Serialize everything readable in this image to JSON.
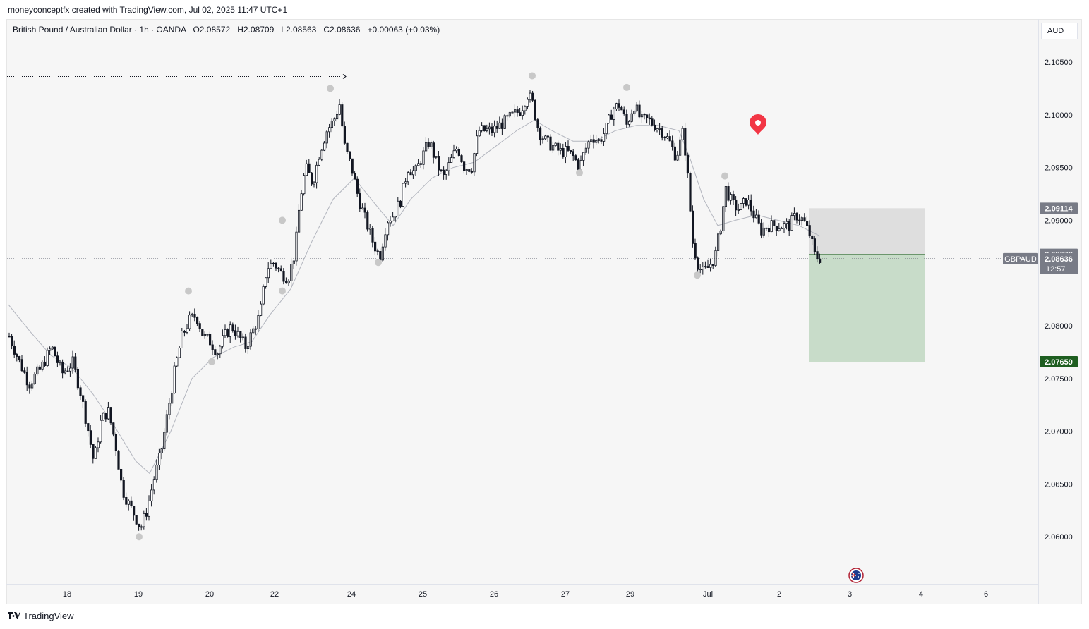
{
  "attribution": "moneyconceptfx created with TradingView.com, Jul 02, 2025 11:47 UTC+1",
  "legend": {
    "symbol": "British Pound / Australian Dollar · 1h · OANDA",
    "open": "O2.08572",
    "high": "H2.08709",
    "low": "L2.08563",
    "close": "C2.08636",
    "change": "+0.00063 (+0.03%)"
  },
  "currency": "AUD",
  "footer": {
    "brand": "TradingView",
    "logo_icon": "tradingview-logo-icon"
  },
  "colors": {
    "candle": "#131722",
    "ma": "#b2b5be",
    "stop_zone": "#d9d9d9",
    "target_zone": "#c8dcc9",
    "target_label": "#1e5e20",
    "price_label": "#787b86",
    "marker": "#f23645",
    "swing_dot": "#c8c8c8"
  },
  "chart_data": {
    "type": "candlestick",
    "symbol": "GBPAUD",
    "timeframe": "1h",
    "y_ticks": [
      "2.10500",
      "2.10000",
      "2.09500",
      "2.09000",
      "2.08000",
      "2.07500",
      "2.07000",
      "2.06500",
      "2.06000"
    ],
    "x_ticks": [
      "18",
      "19",
      "20",
      "22",
      "24",
      "25",
      "26",
      "27",
      "29",
      "Jul",
      "2",
      "3",
      "4",
      "6"
    ],
    "ylim": [
      2.0555,
      2.111
    ],
    "close_path": [
      [
        0,
        2.079
      ],
      [
        12,
        2.077
      ],
      [
        28,
        2.0745
      ],
      [
        45,
        2.076
      ],
      [
        60,
        2.078
      ],
      [
        75,
        2.0755
      ],
      [
        90,
        2.0765
      ],
      [
        100,
        2.074
      ],
      [
        112,
        2.07
      ],
      [
        120,
        2.067
      ],
      [
        130,
        2.071
      ],
      [
        140,
        2.072
      ],
      [
        150,
        2.069
      ],
      [
        160,
        2.0645
      ],
      [
        170,
        2.063
      ],
      [
        178,
        2.062
      ],
      [
        186,
        2.0608
      ],
      [
        195,
        2.0625
      ],
      [
        205,
        2.0655
      ],
      [
        215,
        2.068
      ],
      [
        225,
        2.072
      ],
      [
        235,
        2.076
      ],
      [
        245,
        2.079
      ],
      [
        255,
        2.0805
      ],
      [
        265,
        2.081
      ],
      [
        275,
        2.079
      ],
      [
        285,
        2.0785
      ],
      [
        295,
        2.0775
      ],
      [
        305,
        2.079
      ],
      [
        315,
        2.08
      ],
      [
        325,
        2.079
      ],
      [
        335,
        2.078
      ],
      [
        345,
        2.0795
      ],
      [
        355,
        2.081
      ],
      [
        365,
        2.0855
      ],
      [
        375,
        2.086
      ],
      [
        385,
        2.085
      ],
      [
        395,
        2.0845
      ],
      [
        405,
        2.087
      ],
      [
        412,
        2.092
      ],
      [
        420,
        2.095
      ],
      [
        430,
        2.0935
      ],
      [
        440,
        2.0965
      ],
      [
        450,
        2.0985
      ],
      [
        460,
        2.0995
      ],
      [
        468,
        2.101
      ],
      [
        475,
        2.097
      ],
      [
        485,
        2.095
      ],
      [
        495,
        2.092
      ],
      [
        505,
        2.09
      ],
      [
        515,
        2.088
      ],
      [
        525,
        2.0865
      ],
      [
        535,
        2.09
      ],
      [
        545,
        2.0905
      ],
      [
        555,
        2.092
      ],
      [
        565,
        2.095
      ],
      [
        575,
        2.0945
      ],
      [
        585,
        2.096
      ],
      [
        595,
        2.0975
      ],
      [
        605,
        2.0955
      ],
      [
        615,
        2.094
      ],
      [
        625,
        2.0955
      ],
      [
        635,
        2.097
      ],
      [
        645,
        2.095
      ],
      [
        655,
        2.095
      ],
      [
        665,
        2.0985
      ],
      [
        675,
        2.0985
      ],
      [
        685,
        2.0985
      ],
      [
        695,
        2.099
      ],
      [
        705,
        2.0995
      ],
      [
        715,
        2.1
      ],
      [
        725,
        2.1005
      ],
      [
        735,
        2.102
      ],
      [
        742,
        2.101
      ],
      [
        750,
        2.0985
      ],
      [
        760,
        2.0975
      ],
      [
        770,
        2.097
      ],
      [
        780,
        2.0965
      ],
      [
        790,
        2.0965
      ],
      [
        800,
        2.096
      ],
      [
        808,
        2.095
      ],
      [
        815,
        2.0965
      ],
      [
        825,
        2.098
      ],
      [
        835,
        2.0975
      ],
      [
        845,
        2.0985
      ],
      [
        855,
        2.1005
      ],
      [
        865,
        2.101
      ],
      [
        875,
        2.099
      ],
      [
        885,
        2.101
      ],
      [
        895,
        2.0995
      ],
      [
        905,
        2.0995
      ],
      [
        915,
        2.099
      ],
      [
        925,
        2.0985
      ],
      [
        935,
        2.0975
      ],
      [
        945,
        2.096
      ],
      [
        955,
        2.0985
      ],
      [
        962,
        2.0935
      ],
      [
        968,
        2.088
      ],
      [
        975,
        2.086
      ],
      [
        982,
        2.085
      ],
      [
        990,
        2.0855
      ],
      [
        1000,
        2.0865
      ],
      [
        1008,
        2.0895
      ],
      [
        1015,
        2.093
      ],
      [
        1025,
        2.0915
      ],
      [
        1035,
        2.091
      ],
      [
        1045,
        2.092
      ],
      [
        1055,
        2.0905
      ],
      [
        1065,
        2.089
      ],
      [
        1075,
        2.0895
      ],
      [
        1085,
        2.0895
      ],
      [
        1095,
        2.0895
      ],
      [
        1105,
        2.0895
      ],
      [
        1115,
        2.0905
      ],
      [
        1125,
        2.09
      ],
      [
        1135,
        2.0885
      ],
      [
        1142,
        2.0865
      ],
      [
        1150,
        2.0864
      ]
    ],
    "ma_path": [
      [
        0,
        2.082
      ],
      [
        30,
        2.0795
      ],
      [
        60,
        2.0772
      ],
      [
        90,
        2.076
      ],
      [
        120,
        2.0735
      ],
      [
        150,
        2.0705
      ],
      [
        180,
        2.0672
      ],
      [
        200,
        2.066
      ],
      [
        230,
        2.07
      ],
      [
        260,
        2.075
      ],
      [
        290,
        2.077
      ],
      [
        320,
        2.078
      ],
      [
        345,
        2.0785
      ],
      [
        370,
        2.081
      ],
      [
        400,
        2.0835
      ],
      [
        430,
        2.088
      ],
      [
        460,
        2.092
      ],
      [
        490,
        2.094
      ],
      [
        520,
        2.0915
      ],
      [
        545,
        2.0895
      ],
      [
        570,
        2.092
      ],
      [
        600,
        2.094
      ],
      [
        630,
        2.095
      ],
      [
        660,
        2.0955
      ],
      [
        690,
        2.097
      ],
      [
        720,
        2.0985
      ],
      [
        745,
        2.0995
      ],
      [
        770,
        2.0985
      ],
      [
        800,
        2.0975
      ],
      [
        830,
        2.0975
      ],
      [
        860,
        2.0985
      ],
      [
        890,
        2.099
      ],
      [
        920,
        2.099
      ],
      [
        950,
        2.0985
      ],
      [
        965,
        2.096
      ],
      [
        985,
        2.092
      ],
      [
        1005,
        2.0895
      ],
      [
        1030,
        2.09
      ],
      [
        1060,
        2.0905
      ],
      [
        1090,
        2.09
      ],
      [
        1120,
        2.0895
      ],
      [
        1150,
        2.0885
      ]
    ],
    "swing_points": [
      [
        185,
        2.06
      ],
      [
        255,
        2.0833
      ],
      [
        288,
        2.0766
      ],
      [
        388,
        2.09
      ],
      [
        388,
        2.0833
      ],
      [
        456,
        2.1025
      ],
      [
        524,
        2.086
      ],
      [
        742,
        2.1037
      ],
      [
        809,
        2.0945
      ],
      [
        876,
        2.1026
      ],
      [
        976,
        2.0848
      ],
      [
        1015,
        2.0942
      ]
    ],
    "horizontal_ray": {
      "price": 2.1037,
      "x_end": 490
    },
    "position": {
      "stop": "2.09114",
      "entry": "2.08678",
      "target": "2.07659",
      "stop_value": 2.09114,
      "entry_value": 2.08678,
      "target_value": 2.07659
    },
    "last_price": {
      "symbol": "GBPAUD",
      "price": "2.08636",
      "countdown": "12:57",
      "value": 2.08636
    },
    "event_markers": [
      "location-pin-icon",
      "australia-flag-icon"
    ]
  }
}
